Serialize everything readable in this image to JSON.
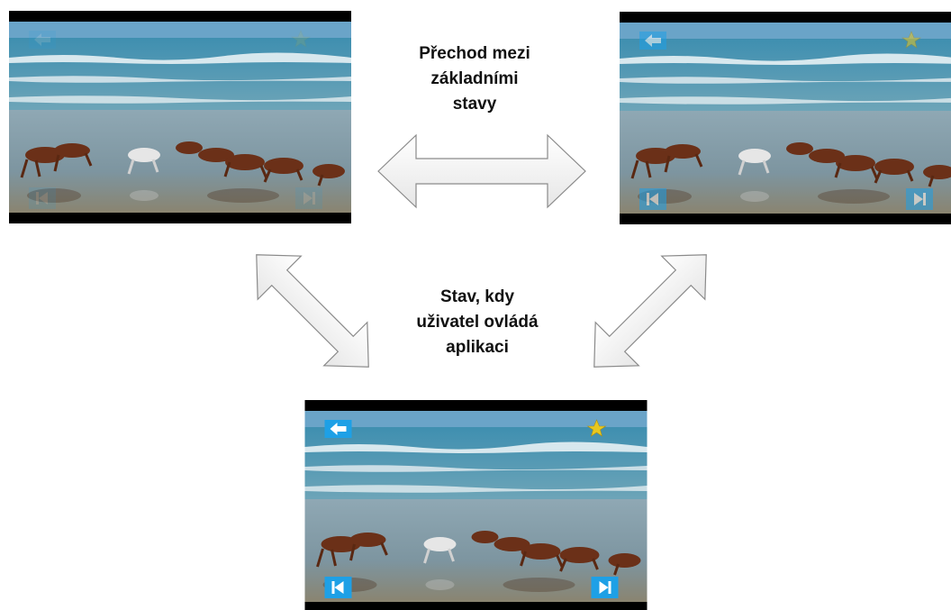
{
  "transition_label": {
    "lines": [
      "Přechod mezi",
      "základními",
      "stavy"
    ]
  },
  "control_label": {
    "lines": [
      "Stav, kdy",
      "uživatel ovládá",
      "aplikaci"
    ]
  }
}
